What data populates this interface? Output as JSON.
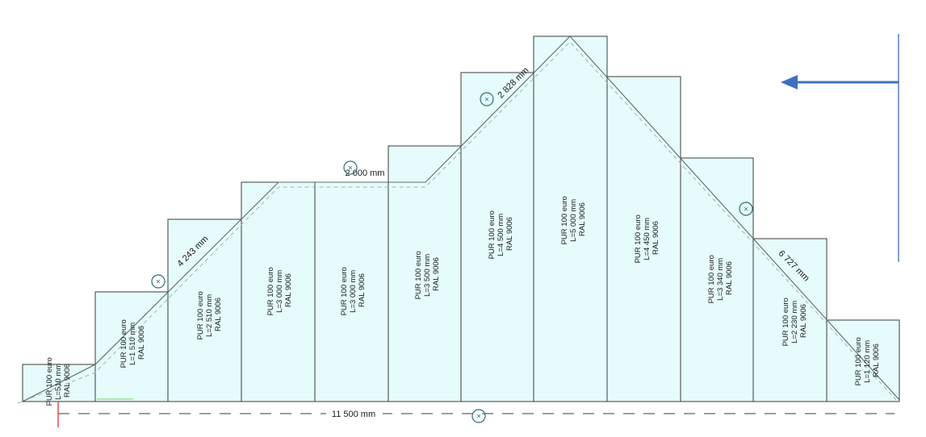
{
  "panels": [
    {
      "line1": "PUR 100 euro",
      "line2": "L=510 mm",
      "line3": "RAL 9006"
    },
    {
      "line1": "PUR 100 euro",
      "line2": "L=1 510 mm",
      "line3": "RAL 9006"
    },
    {
      "line1": "PUR 100 euro",
      "line2": "L=2 510 mm",
      "line3": "RAL 9006"
    },
    {
      "line1": "PUR 100 euro",
      "line2": "L=3 000 mm",
      "line3": "RAL 9006"
    },
    {
      "line1": "PUR 100 euro",
      "line2": "L=3 000 mm",
      "line3": "RAL 9006"
    },
    {
      "line1": "PUR 100 euro",
      "line2": "L=3 500 mm",
      "line3": "RAL 9006"
    },
    {
      "line1": "PUR 100 euro",
      "line2": "L=4 500 mm",
      "line3": "RAL 9006"
    },
    {
      "line1": "PUR 100 euro",
      "line2": "L=5 000 mm",
      "line3": "RAL 9006"
    },
    {
      "line1": "PUR 100 euro",
      "line2": "L=4 450 mm",
      "line3": "RAL 9006"
    },
    {
      "line1": "PUR 100 euro",
      "line2": "L=3 340 mm",
      "line3": "RAL 9006"
    },
    {
      "line1": "PUR 100 euro",
      "line2": "L=2 230 mm",
      "line3": "RAL 9006"
    },
    {
      "line1": "PUR 100 euro",
      "line2": "L=1 120 mm",
      "line3": "RAL 9006"
    }
  ],
  "dimensions": {
    "slope_left": "4 243 mm",
    "flat_top": "2 000 mm",
    "slope_upper": "2 828 mm",
    "slope_right": "6 727 mm",
    "total_width": "11 500 mm"
  },
  "marker_symbol": "×",
  "colors": {
    "panel_fill": "#e6fbfb",
    "panel_stroke": "#3b3b3b",
    "marker": "#2c6f78",
    "arrow": "#3f6fbf",
    "origin_marker": "#e02020"
  },
  "icons": {
    "arrow": "left-arrow-icon",
    "marker": "target-marker-icon"
  }
}
